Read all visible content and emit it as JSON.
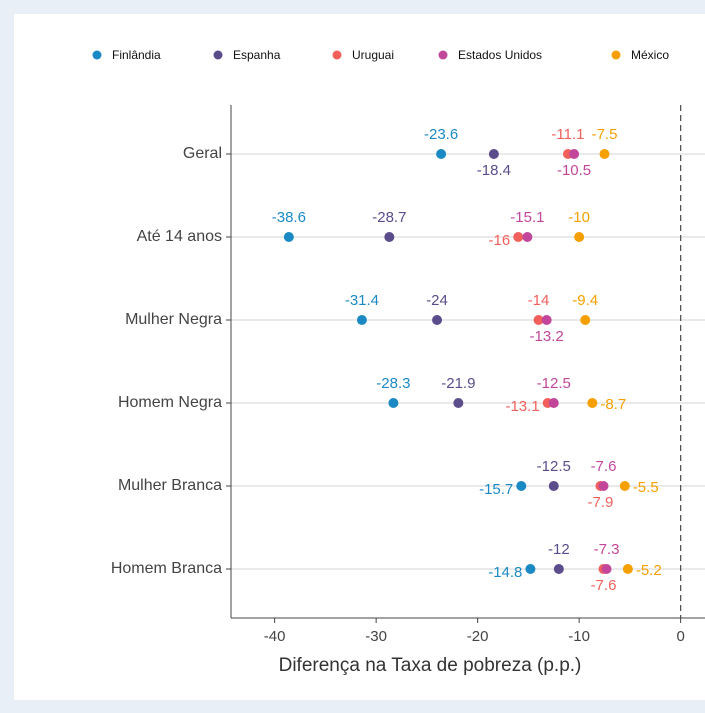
{
  "chart_data": {
    "type": "dot",
    "categories": [
      "Geral",
      "Até 14 anos",
      "Mulher Negra",
      "Homem Negra",
      "Mulher Branca",
      "Homem Branca"
    ],
    "series": [
      {
        "name": "Finlândia",
        "color": "#1b8ac4",
        "values": [
          -23.6,
          -38.6,
          -31.4,
          -28.3,
          -15.7,
          -14.8
        ]
      },
      {
        "name": "Espanha",
        "color": "#5b4c8c",
        "values": [
          -18.4,
          -28.7,
          -24,
          -21.9,
          -12.5,
          -12
        ]
      },
      {
        "name": "Uruguai",
        "color": "#f2605c",
        "values": [
          -11.1,
          -16,
          -14,
          -13.1,
          -7.9,
          -7.6
        ]
      },
      {
        "name": "Estados Unidos",
        "color": "#c2479b",
        "values": [
          -10.5,
          -15.1,
          -13.2,
          -12.5,
          -7.6,
          -7.3
        ]
      },
      {
        "name": "México",
        "color": "#f5a000",
        "values": [
          -7.5,
          -10,
          -9.4,
          -8.7,
          -5.5,
          -5.2
        ]
      }
    ],
    "xlabel": "Diferença na Taxa de pobreza (p.p.)",
    "xlim": [
      -44.3,
      2.4
    ],
    "xticks": [
      -40,
      -30,
      -20,
      -10,
      0
    ],
    "reference_line": 0,
    "grid": true,
    "legend": "top"
  }
}
